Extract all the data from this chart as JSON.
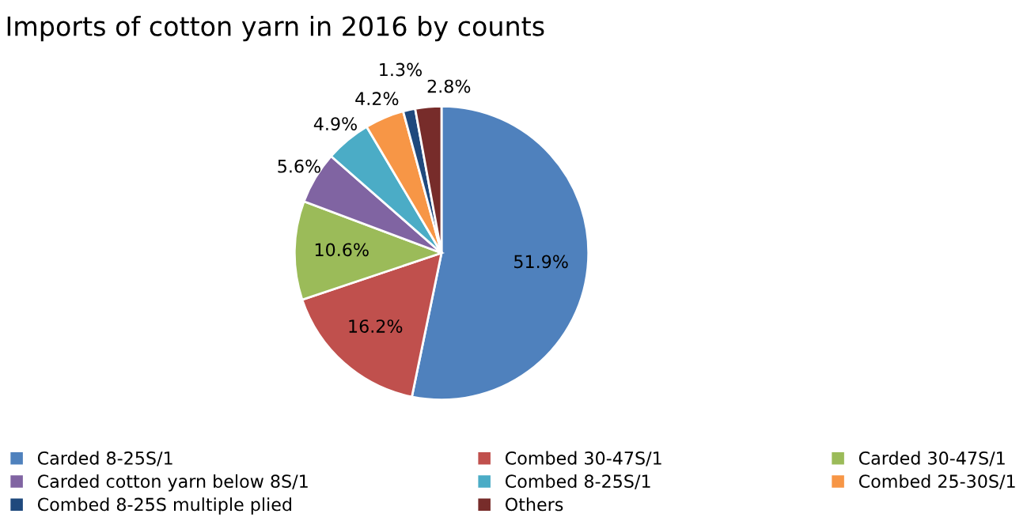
{
  "chart_data": {
    "type": "pie",
    "title": "Imports of cotton yarn in 2016 by counts",
    "categories": [
      "Carded 8-25S/1",
      "Combed 30-47S/1",
      "Carded 30-47S/1",
      "Carded cotton yarn below 8S/1",
      "Combed 8-25S/1",
      "Combed 25-30S/1",
      "Combed 8-25S multiple plied",
      "Others"
    ],
    "values": [
      51.9,
      16.2,
      10.6,
      5.6,
      4.9,
      4.2,
      1.3,
      2.8
    ],
    "value_labels": [
      "51.9%",
      "16.2%",
      "10.6%",
      "5.6%",
      "4.9%",
      "4.2%",
      "1.3%",
      "2.8%"
    ],
    "colors": [
      "#4f81bd",
      "#c0504d",
      "#9bbb59",
      "#8064a2",
      "#4bacc6",
      "#f79646",
      "#1f497d",
      "#772c2a"
    ],
    "legend": "bottom"
  }
}
